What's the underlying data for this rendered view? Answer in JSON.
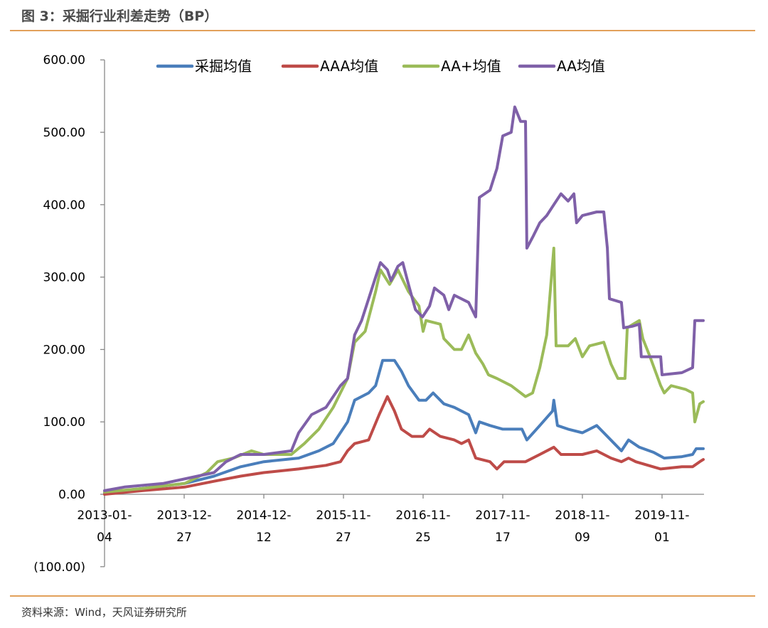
{
  "title": "图 3：采掘行业利差走势（BP）",
  "source": "资料来源：Wind，天风证券研究所",
  "chart_data": {
    "type": "line",
    "title": "图 3：采掘行业利差走势（BP）",
    "xlabel": "",
    "ylabel": "",
    "ylim": [
      -100,
      600
    ],
    "y_ticks": [
      "600.00",
      "500.00",
      "400.00",
      "300.00",
      "200.00",
      "100.00",
      "0.00",
      "(100.00)"
    ],
    "y_tick_values": [
      600,
      500,
      400,
      300,
      200,
      100,
      0,
      -100
    ],
    "negative_tick_color": "#e00000",
    "x_ticks": [
      {
        "date": "2013-01-04",
        "line1": "2013-01-",
        "line2": "04"
      },
      {
        "date": "2013-12-27",
        "line1": "2013-12-",
        "line2": "27"
      },
      {
        "date": "2014-12-12",
        "line1": "2014-12-",
        "line2": "12"
      },
      {
        "date": "2015-11-27",
        "line1": "2015-11-",
        "line2": "27"
      },
      {
        "date": "2016-11-25",
        "line1": "2016-11-",
        "line2": "25"
      },
      {
        "date": "2017-11-17",
        "line1": "2017-11-",
        "line2": "17"
      },
      {
        "date": "2018-11-09",
        "line1": "2018-11-",
        "line2": "09"
      },
      {
        "date": "2019-11-01",
        "line1": "2019-11-",
        "line2": "01"
      }
    ],
    "grid": false,
    "legend_position": "top",
    "series": [
      {
        "name": "采掘均值",
        "color": "#4a7ebb",
        "points": [
          [
            "2013-01-04",
            2
          ],
          [
            "2013-06-22",
            8
          ],
          [
            "2013-12-30",
            15
          ],
          [
            "2014-05-07",
            25
          ],
          [
            "2014-09-01",
            38
          ],
          [
            "2014-12-12",
            45
          ],
          [
            "2015-05-14",
            50
          ],
          [
            "2015-08-11",
            60
          ],
          [
            "2015-10-13",
            70
          ],
          [
            "2015-12-16",
            100
          ],
          [
            "2016-01-17",
            130
          ],
          [
            "2016-03-21",
            140
          ],
          [
            "2016-04-22",
            150
          ],
          [
            "2016-05-24",
            185
          ],
          [
            "2016-07-17",
            185
          ],
          [
            "2016-08-18",
            170
          ],
          [
            "2016-09-19",
            150
          ],
          [
            "2016-11-06",
            130
          ],
          [
            "2016-12-08",
            130
          ],
          [
            "2017-01-09",
            140
          ],
          [
            "2017-02-26",
            125
          ],
          [
            "2017-04-14",
            120
          ],
          [
            "2017-06-17",
            110
          ],
          [
            "2017-07-19",
            85
          ],
          [
            "2017-08-04",
            100
          ],
          [
            "2017-09-21",
            95
          ],
          [
            "2017-11-17",
            90
          ],
          [
            "2018-02-11",
            90
          ],
          [
            "2018-03-05",
            75
          ],
          [
            "2018-05-02",
            95
          ],
          [
            "2018-06-28",
            115
          ],
          [
            "2018-07-04",
            130
          ],
          [
            "2018-07-20",
            95
          ],
          [
            "2018-09-06",
            90
          ],
          [
            "2018-11-09",
            85
          ],
          [
            "2019-01-12",
            95
          ],
          [
            "2019-02-13",
            85
          ],
          [
            "2019-04-01",
            70
          ],
          [
            "2019-05-03",
            60
          ],
          [
            "2019-06-04",
            75
          ],
          [
            "2019-07-22",
            65
          ],
          [
            "2019-09-24",
            58
          ],
          [
            "2019-11-11",
            50
          ],
          [
            "2020-01-29",
            52
          ],
          [
            "2020-03-17",
            55
          ],
          [
            "2020-04-02",
            63
          ],
          [
            "2020-05-04",
            63
          ]
        ]
      },
      {
        "name": "AAA均值",
        "color": "#be4b48",
        "points": [
          [
            "2013-01-04",
            0
          ],
          [
            "2013-06-22",
            5
          ],
          [
            "2013-12-30",
            10
          ],
          [
            "2014-05-07",
            18
          ],
          [
            "2014-09-01",
            25
          ],
          [
            "2014-12-12",
            30
          ],
          [
            "2015-05-14",
            35
          ],
          [
            "2015-09-11",
            40
          ],
          [
            "2015-11-14",
            45
          ],
          [
            "2015-12-16",
            60
          ],
          [
            "2016-01-17",
            70
          ],
          [
            "2016-03-21",
            75
          ],
          [
            "2016-05-08",
            110
          ],
          [
            "2016-06-15",
            135
          ],
          [
            "2016-07-17",
            115
          ],
          [
            "2016-08-18",
            90
          ],
          [
            "2016-10-05",
            80
          ],
          [
            "2016-11-25",
            80
          ],
          [
            "2016-12-24",
            90
          ],
          [
            "2017-02-10",
            80
          ],
          [
            "2017-04-14",
            75
          ],
          [
            "2017-05-16",
            70
          ],
          [
            "2017-06-17",
            75
          ],
          [
            "2017-07-19",
            50
          ],
          [
            "2017-09-21",
            45
          ],
          [
            "2017-10-22",
            35
          ],
          [
            "2017-11-23",
            45
          ],
          [
            "2018-02-27",
            45
          ],
          [
            "2018-05-02",
            55
          ],
          [
            "2018-07-04",
            65
          ],
          [
            "2018-08-05",
            55
          ],
          [
            "2018-11-09",
            55
          ],
          [
            "2019-01-12",
            60
          ],
          [
            "2019-03-17",
            50
          ],
          [
            "2019-05-03",
            45
          ],
          [
            "2019-06-04",
            50
          ],
          [
            "2019-07-06",
            45
          ],
          [
            "2019-10-26",
            35
          ],
          [
            "2020-01-29",
            38
          ],
          [
            "2020-03-17",
            38
          ],
          [
            "2020-04-18",
            45
          ],
          [
            "2020-05-04",
            48
          ]
        ]
      },
      {
        "name": "AA+均值",
        "color": "#9bbb59",
        "points": [
          [
            "2013-01-04",
            3
          ],
          [
            "2013-06-22",
            8
          ],
          [
            "2013-12-30",
            15
          ],
          [
            "2014-04-05",
            30
          ],
          [
            "2014-05-23",
            45
          ],
          [
            "2014-07-31",
            50
          ],
          [
            "2014-10-19",
            60
          ],
          [
            "2014-12-12",
            55
          ],
          [
            "2015-04-12",
            55
          ],
          [
            "2015-06-08",
            70
          ],
          [
            "2015-08-11",
            90
          ],
          [
            "2015-10-13",
            120
          ],
          [
            "2015-12-16",
            160
          ],
          [
            "2016-01-17",
            210
          ],
          [
            "2016-03-05",
            225
          ],
          [
            "2016-04-22",
            280
          ],
          [
            "2016-05-14",
            310
          ],
          [
            "2016-06-25",
            290
          ],
          [
            "2016-08-02",
            310
          ],
          [
            "2016-09-19",
            280
          ],
          [
            "2016-11-06",
            260
          ],
          [
            "2016-11-25",
            225
          ],
          [
            "2016-12-08",
            240
          ],
          [
            "2017-02-10",
            235
          ],
          [
            "2017-02-26",
            215
          ],
          [
            "2017-04-14",
            200
          ],
          [
            "2017-05-16",
            200
          ],
          [
            "2017-06-17",
            220
          ],
          [
            "2017-07-19",
            195
          ],
          [
            "2017-08-20",
            180
          ],
          [
            "2017-09-14",
            165
          ],
          [
            "2017-10-22",
            160
          ],
          [
            "2017-12-25",
            150
          ],
          [
            "2018-02-27",
            135
          ],
          [
            "2018-03-31",
            140
          ],
          [
            "2018-05-02",
            175
          ],
          [
            "2018-06-02",
            220
          ],
          [
            "2018-07-04",
            340
          ],
          [
            "2018-07-14",
            205
          ],
          [
            "2018-09-06",
            205
          ],
          [
            "2018-10-08",
            215
          ],
          [
            "2018-11-09",
            190
          ],
          [
            "2018-12-11",
            205
          ],
          [
            "2019-02-13",
            210
          ],
          [
            "2019-03-17",
            180
          ],
          [
            "2019-04-17",
            160
          ],
          [
            "2019-05-19",
            160
          ],
          [
            "2019-05-29",
            230
          ],
          [
            "2019-07-22",
            240
          ],
          [
            "2019-08-07",
            215
          ],
          [
            "2019-09-08",
            190
          ],
          [
            "2019-10-26",
            150
          ],
          [
            "2019-11-11",
            140
          ],
          [
            "2019-12-12",
            150
          ],
          [
            "2020-02-14",
            145
          ],
          [
            "2020-03-17",
            140
          ],
          [
            "2020-03-27",
            100
          ],
          [
            "2020-04-18",
            125
          ],
          [
            "2020-05-04",
            128
          ]
        ]
      },
      {
        "name": "AA均值",
        "color": "#7f60a8",
        "points": [
          [
            "2013-01-04",
            5
          ],
          [
            "2013-04-03",
            10
          ],
          [
            "2013-09-25",
            15
          ],
          [
            "2014-05-07",
            30
          ],
          [
            "2014-06-29",
            45
          ],
          [
            "2014-09-01",
            55
          ],
          [
            "2014-12-12",
            55
          ],
          [
            "2015-04-12",
            60
          ],
          [
            "2015-05-14",
            85
          ],
          [
            "2015-07-10",
            110
          ],
          [
            "2015-09-11",
            120
          ],
          [
            "2015-11-14",
            150
          ],
          [
            "2015-12-16",
            160
          ],
          [
            "2016-01-17",
            220
          ],
          [
            "2016-02-18",
            240
          ],
          [
            "2016-03-21",
            270
          ],
          [
            "2016-04-22",
            300
          ],
          [
            "2016-05-14",
            320
          ],
          [
            "2016-06-15",
            310
          ],
          [
            "2016-07-01",
            295
          ],
          [
            "2016-08-02",
            315
          ],
          [
            "2016-08-24",
            320
          ],
          [
            "2016-09-19",
            290
          ],
          [
            "2016-10-21",
            255
          ],
          [
            "2016-11-22",
            245
          ],
          [
            "2016-12-24",
            260
          ],
          [
            "2017-01-15",
            285
          ],
          [
            "2017-02-26",
            275
          ],
          [
            "2017-03-20",
            255
          ],
          [
            "2017-04-14",
            275
          ],
          [
            "2017-06-17",
            265
          ],
          [
            "2017-07-19",
            245
          ],
          [
            "2017-08-04",
            410
          ],
          [
            "2017-09-21",
            420
          ],
          [
            "2017-10-22",
            450
          ],
          [
            "2017-11-17",
            495
          ],
          [
            "2017-12-25",
            500
          ],
          [
            "2018-01-10",
            535
          ],
          [
            "2018-02-05",
            515
          ],
          [
            "2018-02-27",
            515
          ],
          [
            "2018-03-05",
            340
          ],
          [
            "2018-03-31",
            355
          ],
          [
            "2018-05-02",
            375
          ],
          [
            "2018-06-02",
            385
          ],
          [
            "2018-07-04",
            400
          ],
          [
            "2018-08-05",
            415
          ],
          [
            "2018-09-06",
            405
          ],
          [
            "2018-10-02",
            415
          ],
          [
            "2018-10-14",
            375
          ],
          [
            "2018-11-09",
            385
          ],
          [
            "2019-01-12",
            390
          ],
          [
            "2019-02-13",
            390
          ],
          [
            "2019-03-01",
            340
          ],
          [
            "2019-03-10",
            270
          ],
          [
            "2019-05-03",
            265
          ],
          [
            "2019-05-13",
            230
          ],
          [
            "2019-06-20",
            232
          ],
          [
            "2019-07-22",
            235
          ],
          [
            "2019-07-31",
            190
          ],
          [
            "2019-10-26",
            190
          ],
          [
            "2019-11-01",
            165
          ],
          [
            "2020-01-29",
            168
          ],
          [
            "2020-03-17",
            175
          ],
          [
            "2020-03-27",
            240
          ],
          [
            "2020-05-04",
            240
          ]
        ]
      }
    ]
  }
}
